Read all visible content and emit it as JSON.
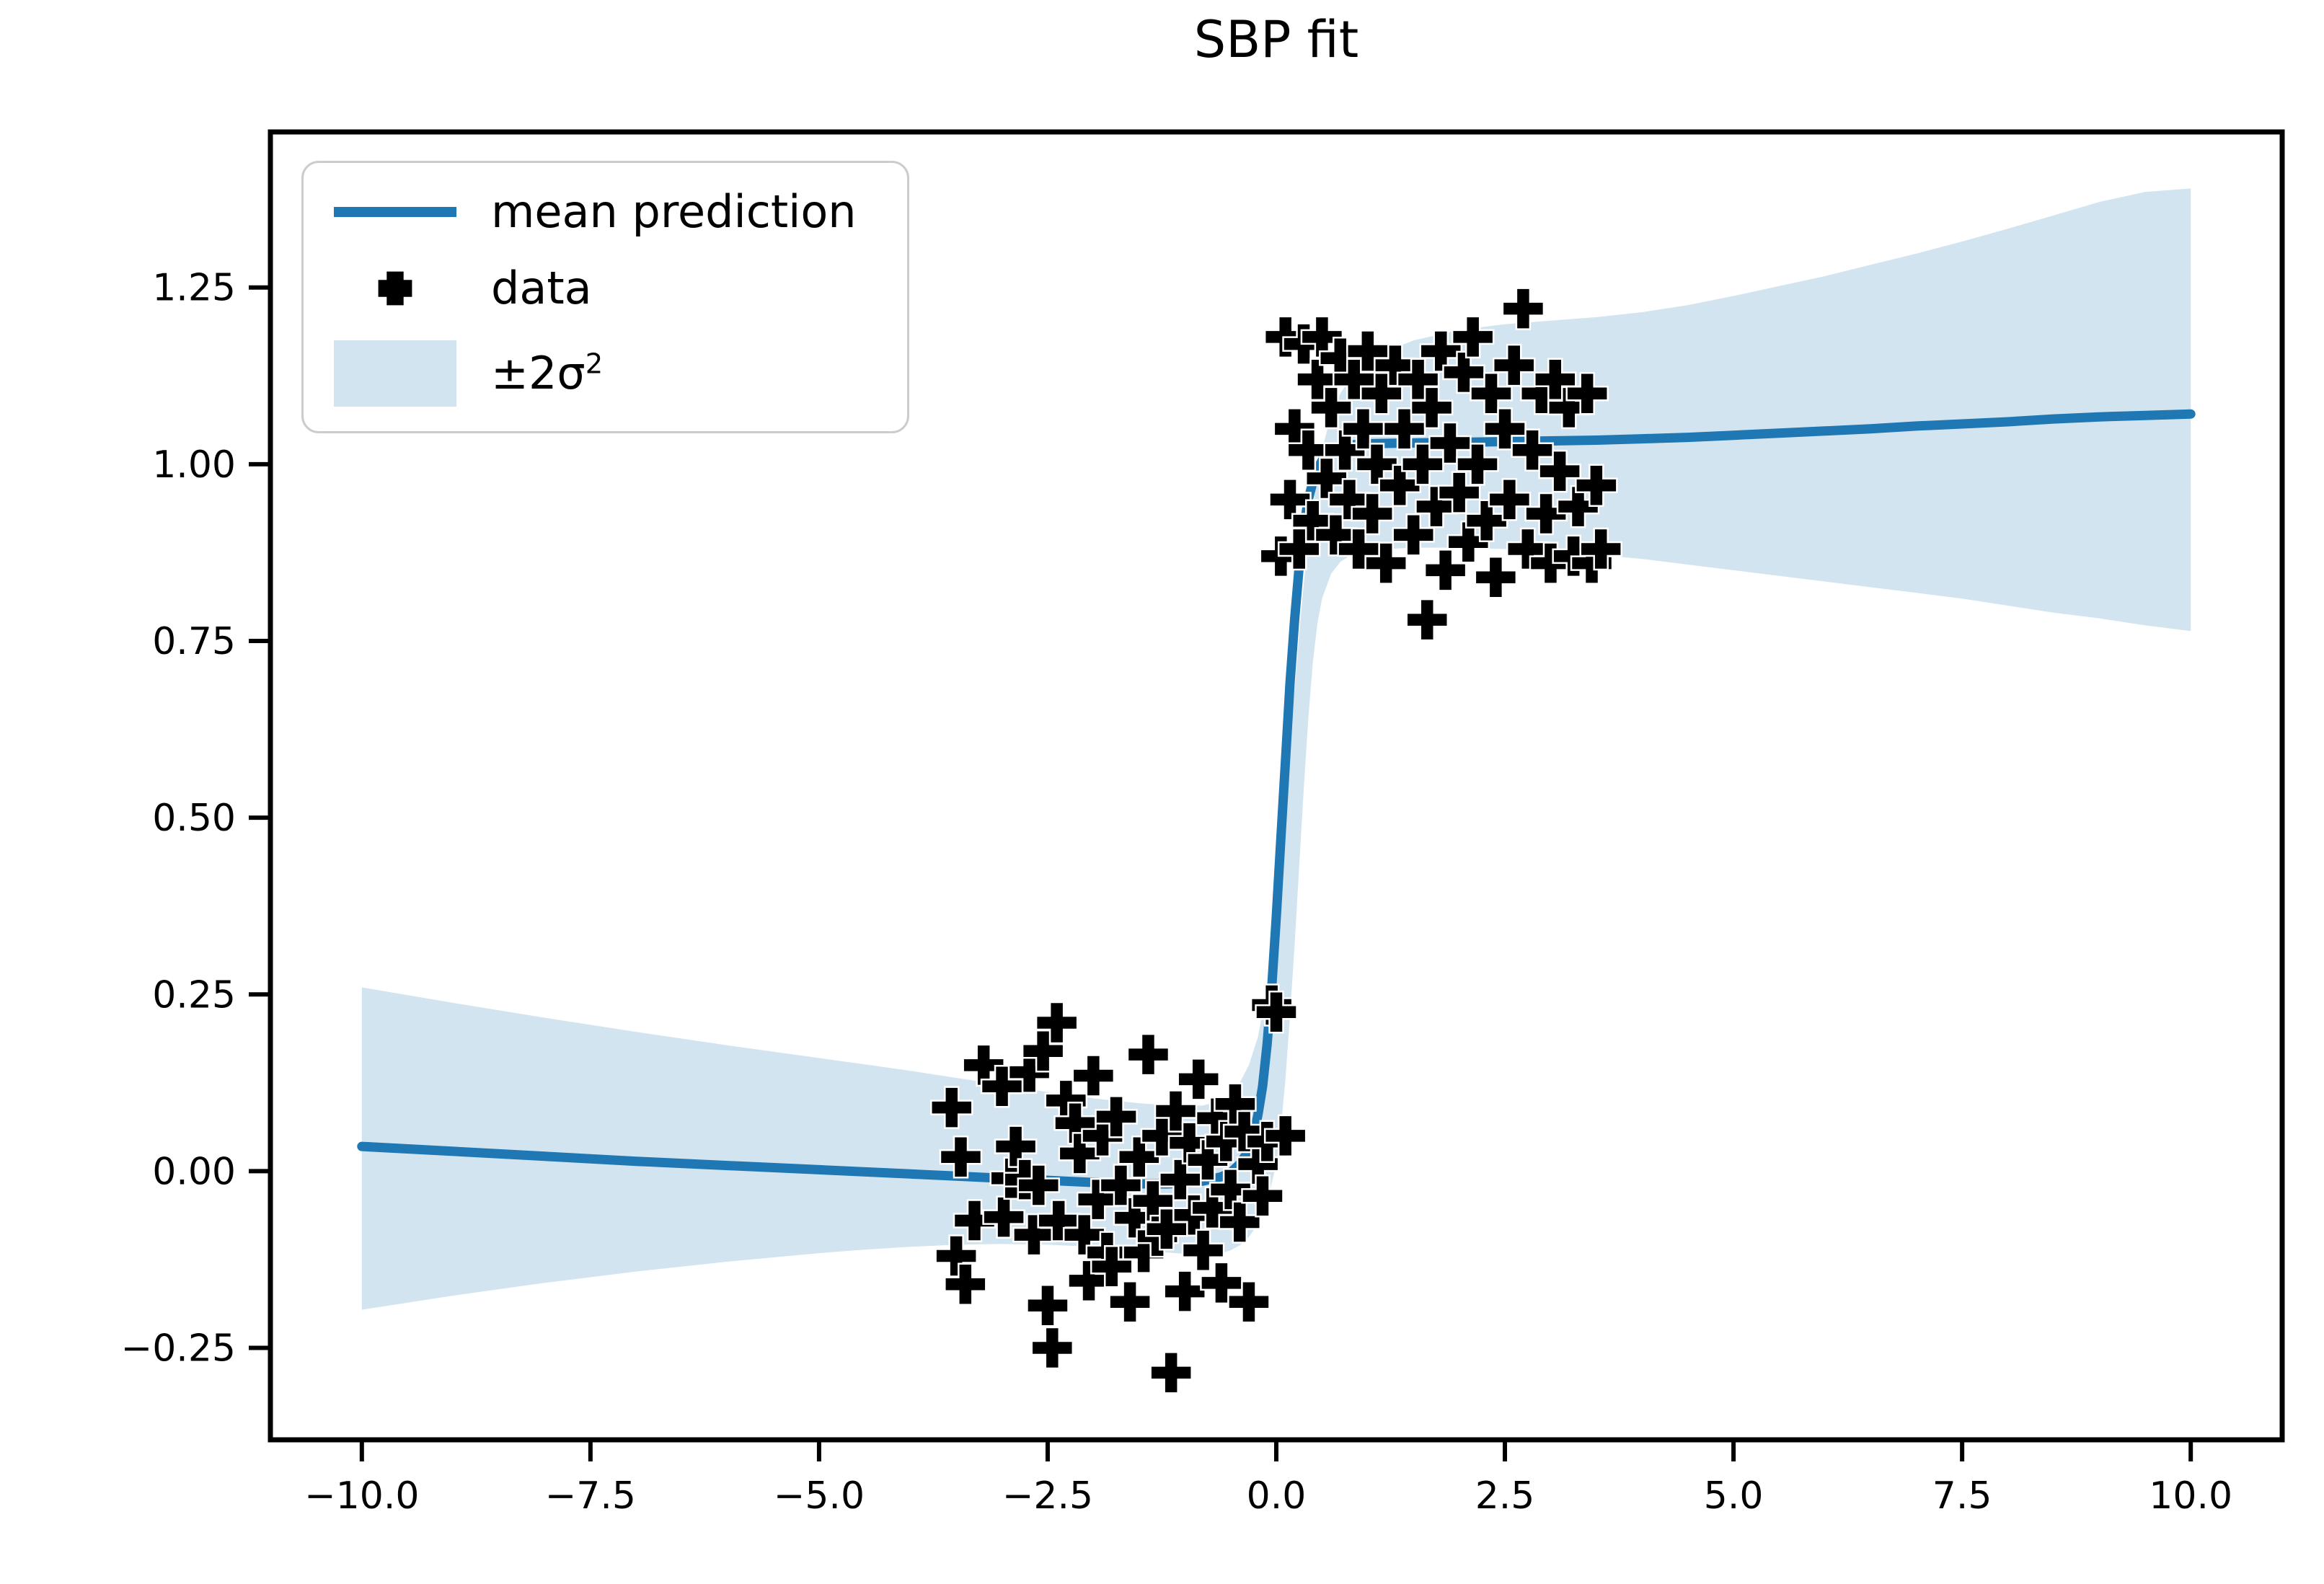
{
  "title": "SBP fit",
  "legend": {
    "position": "upper left",
    "items": [
      {
        "label": "mean prediction",
        "type": "line",
        "color": "#1f77b4"
      },
      {
        "label": "data",
        "type": "marker",
        "marker": "plus",
        "color": "#000000"
      },
      {
        "label": "±2σ²",
        "label_main": "±2σ",
        "label_sup": "2",
        "type": "band",
        "color": "#1f77b4",
        "opacity": 0.2
      }
    ]
  },
  "axes": {
    "x_ticks": [
      {
        "value": -10,
        "label": "−10.0"
      },
      {
        "value": -7.5,
        "label": "−7.5"
      },
      {
        "value": -5,
        "label": "−5.0"
      },
      {
        "value": -2.5,
        "label": "−2.5"
      },
      {
        "value": 0,
        "label": "0.0"
      },
      {
        "value": 2.5,
        "label": "2.5"
      },
      {
        "value": 5,
        "label": "5.0"
      },
      {
        "value": 7.5,
        "label": "7.5"
      },
      {
        "value": 10,
        "label": "10.0"
      }
    ],
    "y_ticks": [
      {
        "value": -0.25,
        "label": "−0.25"
      },
      {
        "value": 0.0,
        "label": "0.00"
      },
      {
        "value": 0.25,
        "label": "0.25"
      },
      {
        "value": 0.5,
        "label": "0.50"
      },
      {
        "value": 0.75,
        "label": "0.75"
      },
      {
        "value": 1.0,
        "label": "1.00"
      },
      {
        "value": 1.25,
        "label": "1.25"
      }
    ]
  },
  "colors": {
    "line": "#1f77b4",
    "band": "#1f77b4",
    "band_opacity": 0.2,
    "marker": "#000000",
    "spine": "#000000",
    "legend_border": "#cccccc"
  },
  "chart_data": {
    "type": "line",
    "title": "SBP fit",
    "xlabel": "",
    "ylabel": "",
    "xlim": [
      -11,
      11
    ],
    "ylim": [
      -0.38,
      1.47
    ],
    "grid": false,
    "legend_position": "upper left",
    "series": [
      {
        "name": "mean prediction",
        "type": "line",
        "color": "#1f77b4",
        "x": [
          -10,
          -9,
          -8,
          -7,
          -6,
          -5,
          -4,
          -3.5,
          -3,
          -2.5,
          -2,
          -1.5,
          -1.2,
          -1,
          -0.8,
          -0.6,
          -0.5,
          -0.4,
          -0.3,
          -0.25,
          -0.2,
          -0.15,
          -0.1,
          -0.05,
          0,
          0.05,
          0.1,
          0.15,
          0.2,
          0.25,
          0.3,
          0.35,
          0.4,
          0.45,
          0.5,
          0.6,
          0.7,
          0.8,
          1,
          1.5,
          2,
          2.5,
          3,
          3.5,
          4,
          4.5,
          5,
          5.5,
          6,
          6.5,
          7,
          7.5,
          8,
          8.5,
          9,
          9.5,
          10
        ],
        "y": [
          0.035,
          0.028,
          0.021,
          0.014,
          0.008,
          0.002,
          -0.004,
          -0.007,
          -0.01,
          -0.013,
          -0.016,
          -0.018,
          -0.018,
          -0.017,
          -0.014,
          -0.008,
          -0.002,
          0.01,
          0.03,
          0.05,
          0.08,
          0.12,
          0.18,
          0.26,
          0.36,
          0.47,
          0.58,
          0.69,
          0.78,
          0.855,
          0.91,
          0.95,
          0.975,
          0.993,
          1.005,
          1.018,
          1.024,
          1.027,
          1.029,
          1.03,
          1.031,
          1.032,
          1.033,
          1.034,
          1.036,
          1.038,
          1.041,
          1.044,
          1.047,
          1.05,
          1.054,
          1.057,
          1.06,
          1.064,
          1.067,
          1.069,
          1.071
        ]
      },
      {
        "name": "data",
        "type": "scatter",
        "marker": "plus",
        "color": "#000000",
        "points": [
          [
            -3.55,
            0.09
          ],
          [
            -3.5,
            -0.12
          ],
          [
            -3.45,
            0.02
          ],
          [
            -3.4,
            -0.16
          ],
          [
            -3.3,
            -0.07
          ],
          [
            -3.2,
            0.15
          ],
          [
            -3.0,
            0.12
          ],
          [
            -2.98,
            -0.065
          ],
          [
            -2.9,
            -0.01
          ],
          [
            -2.85,
            0.035
          ],
          [
            -2.75,
            -0.012
          ],
          [
            -2.7,
            0.14
          ],
          [
            -2.65,
            -0.09
          ],
          [
            -2.6,
            -0.02
          ],
          [
            -2.55,
            0.17
          ],
          [
            -2.5,
            -0.19
          ],
          [
            -2.45,
            -0.25
          ],
          [
            -2.4,
            0.21
          ],
          [
            -2.38,
            -0.07
          ],
          [
            -2.3,
            0.1
          ],
          [
            -2.2,
            0.068
          ],
          [
            -2.15,
            0.025
          ],
          [
            -2.1,
            -0.09
          ],
          [
            -2.05,
            -0.155
          ],
          [
            -2.0,
            0.135
          ],
          [
            -1.95,
            -0.04
          ],
          [
            -1.9,
            0.05
          ],
          [
            -1.85,
            -0.115
          ],
          [
            -1.8,
            -0.135
          ],
          [
            -1.75,
            0.077
          ],
          [
            -1.7,
            -0.02
          ],
          [
            -1.6,
            -0.185
          ],
          [
            -1.55,
            -0.066
          ],
          [
            -1.5,
            0.02
          ],
          [
            -1.45,
            -0.115
          ],
          [
            -1.4,
            0.165
          ],
          [
            -1.35,
            -0.042
          ],
          [
            -1.3,
            -0.092
          ],
          [
            -1.25,
            0.05
          ],
          [
            -1.2,
            -0.082
          ],
          [
            -1.15,
            -0.285
          ],
          [
            -1.1,
            0.085
          ],
          [
            -1.05,
            -0.012
          ],
          [
            -1.0,
            -0.17
          ],
          [
            -0.95,
            0.04
          ],
          [
            -0.9,
            -0.062
          ],
          [
            -0.85,
            0.13
          ],
          [
            -0.8,
            -0.112
          ],
          [
            -0.75,
            0.016
          ],
          [
            -0.7,
            -0.052
          ],
          [
            -0.65,
            0.075
          ],
          [
            -0.6,
            -0.158
          ],
          [
            -0.55,
            0.042
          ],
          [
            -0.5,
            -0.026
          ],
          [
            -0.45,
            0.095
          ],
          [
            -0.4,
            -0.072
          ],
          [
            -0.35,
            0.056
          ],
          [
            -0.3,
            -0.185
          ],
          [
            -0.2,
            0.01
          ],
          [
            -0.15,
            -0.035
          ],
          [
            -0.1,
            0.042
          ],
          [
            -0.05,
            0.235
          ],
          [
            0.0,
            0.225
          ],
          [
            0.1,
            0.05
          ],
          [
            0.05,
            0.87
          ],
          [
            0.1,
            1.18
          ],
          [
            0.15,
            0.95
          ],
          [
            0.2,
            1.05
          ],
          [
            0.25,
            0.88
          ],
          [
            0.3,
            1.17
          ],
          [
            0.35,
            1.02
          ],
          [
            0.4,
            0.92
          ],
          [
            0.45,
            1.12
          ],
          [
            0.5,
            1.18
          ],
          [
            0.55,
            0.98
          ],
          [
            0.6,
            1.08
          ],
          [
            0.65,
            0.9
          ],
          [
            0.7,
            1.15
          ],
          [
            0.75,
            1.02
          ],
          [
            0.8,
            0.95
          ],
          [
            0.85,
            1.12
          ],
          [
            0.9,
            0.88
          ],
          [
            0.95,
            1.05
          ],
          [
            1.0,
            1.16
          ],
          [
            1.05,
            0.93
          ],
          [
            1.1,
            1.0
          ],
          [
            1.15,
            1.1
          ],
          [
            1.2,
            0.86
          ],
          [
            1.3,
            1.14
          ],
          [
            1.35,
            0.97
          ],
          [
            1.4,
            1.05
          ],
          [
            1.5,
            0.9
          ],
          [
            1.55,
            1.12
          ],
          [
            1.6,
            1.0
          ],
          [
            1.65,
            0.78
          ],
          [
            1.7,
            1.08
          ],
          [
            1.75,
            0.94
          ],
          [
            1.8,
            1.16
          ],
          [
            1.85,
            0.85
          ],
          [
            1.9,
            1.03
          ],
          [
            2.0,
            0.96
          ],
          [
            2.05,
            1.13
          ],
          [
            2.1,
            0.89
          ],
          [
            2.15,
            1.18
          ],
          [
            2.2,
            1.0
          ],
          [
            2.3,
            0.92
          ],
          [
            2.35,
            1.1
          ],
          [
            2.4,
            0.84
          ],
          [
            2.5,
            1.05
          ],
          [
            2.55,
            0.95
          ],
          [
            2.6,
            1.14
          ],
          [
            2.7,
            1.22
          ],
          [
            2.75,
            0.88
          ],
          [
            2.8,
            1.02
          ],
          [
            2.9,
            1.1
          ],
          [
            2.95,
            0.93
          ],
          [
            3.0,
            0.86
          ],
          [
            3.05,
            1.12
          ],
          [
            3.1,
            0.99
          ],
          [
            3.2,
            1.08
          ],
          [
            3.25,
            0.87
          ],
          [
            3.3,
            0.94
          ],
          [
            3.4,
            1.1
          ],
          [
            3.45,
            0.86
          ],
          [
            3.5,
            0.97
          ],
          [
            3.55,
            0.88
          ]
        ]
      },
      {
        "name": "±2σ²",
        "type": "band",
        "color": "#1f77b4",
        "opacity": 0.2,
        "x": [
          -10,
          -9,
          -8,
          -7,
          -6,
          -5,
          -4.5,
          -4,
          -3.5,
          -3,
          -2.5,
          -2,
          -1.5,
          -1,
          -0.8,
          -0.6,
          -0.5,
          -0.4,
          -0.3,
          -0.2,
          -0.1,
          0,
          0.05,
          0.1,
          0.15,
          0.2,
          0.25,
          0.3,
          0.35,
          0.4,
          0.45,
          0.5,
          0.6,
          0.7,
          0.8,
          1,
          1.2,
          1.5,
          2,
          2.5,
          3,
          3.5,
          4,
          4.5,
          5,
          5.5,
          6,
          6.5,
          7,
          7.5,
          8,
          8.5,
          9,
          9.5,
          10
        ],
        "upper": [
          0.26,
          0.238,
          0.217,
          0.197,
          0.178,
          0.16,
          0.151,
          0.142,
          0.132,
          0.122,
          0.112,
          0.103,
          0.096,
          0.092,
          0.093,
          0.1,
          0.11,
          0.125,
          0.15,
          0.19,
          0.26,
          0.37,
          0.44,
          0.52,
          0.6,
          0.68,
          0.76,
          0.83,
          0.89,
          0.94,
          0.98,
          1.02,
          1.07,
          1.1,
          1.12,
          1.145,
          1.16,
          1.175,
          1.19,
          1.198,
          1.203,
          1.208,
          1.215,
          1.225,
          1.238,
          1.252,
          1.266,
          1.282,
          1.298,
          1.315,
          1.333,
          1.352,
          1.371,
          1.385,
          1.39
        ],
        "lower": [
          -0.196,
          -0.176,
          -0.158,
          -0.142,
          -0.128,
          -0.116,
          -0.111,
          -0.107,
          -0.104,
          -0.103,
          -0.104,
          -0.107,
          -0.112,
          -0.117,
          -0.118,
          -0.116,
          -0.112,
          -0.105,
          -0.093,
          -0.075,
          -0.045,
          0.01,
          0.06,
          0.13,
          0.22,
          0.32,
          0.43,
          0.54,
          0.64,
          0.72,
          0.775,
          0.81,
          0.845,
          0.862,
          0.87,
          0.877,
          0.88,
          0.882,
          0.882,
          0.88,
          0.877,
          0.872,
          0.866,
          0.858,
          0.85,
          0.842,
          0.834,
          0.826,
          0.818,
          0.81,
          0.8,
          0.79,
          0.782,
          0.772,
          0.764
        ]
      }
    ]
  }
}
